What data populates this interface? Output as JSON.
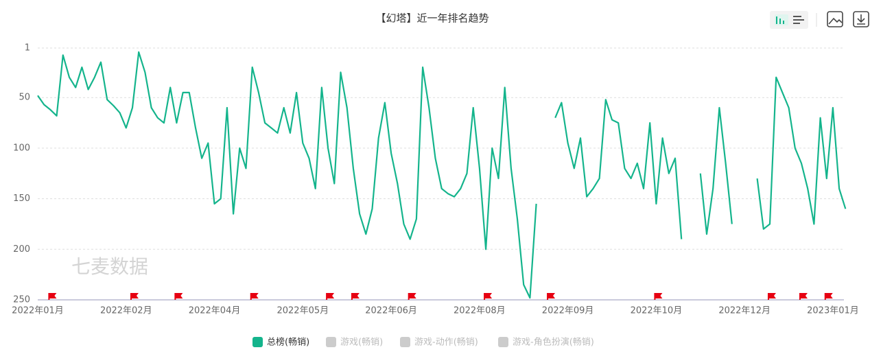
{
  "chart_data": {
    "type": "line",
    "title": "【幻塔】近一年排名趋势",
    "watermark": "七麦数据",
    "categories": [
      "2022年01月",
      null,
      null,
      null,
      null,
      null,
      null,
      null,
      null,
      null,
      null,
      null,
      null,
      null,
      "2022年02月",
      null,
      null,
      null,
      null,
      null,
      null,
      null,
      null,
      null,
      null,
      null,
      null,
      null,
      "2022年04月",
      null,
      null,
      null,
      null,
      null,
      null,
      null,
      null,
      null,
      null,
      null,
      null,
      null,
      "2022年05月",
      null,
      null,
      null,
      null,
      null,
      null,
      null,
      null,
      null,
      null,
      null,
      null,
      null,
      "2022年06月",
      null,
      null,
      null,
      null,
      null,
      null,
      null,
      null,
      null,
      null,
      null,
      null,
      null,
      "2022年08月",
      null,
      null,
      null,
      null,
      null,
      null,
      null,
      null,
      null,
      null,
      null,
      null,
      null,
      "2022年09月",
      null,
      null,
      null,
      null,
      null,
      null,
      null,
      null,
      null,
      null,
      null,
      null,
      null,
      "2022年10月",
      null,
      null,
      null,
      null,
      null,
      null,
      null,
      null,
      null,
      null,
      null,
      null,
      null,
      "2022年12月",
      null,
      null,
      null,
      null,
      null,
      null,
      null,
      null,
      null,
      null,
      null,
      null,
      null,
      "2023年01月",
      null,
      null
    ],
    "series": [
      {
        "name": "总榜(畅销)",
        "color": "#14b48c",
        "values": [
          48,
          57,
          62,
          68,
          8,
          30,
          40,
          20,
          42,
          30,
          15,
          52,
          58,
          65,
          80,
          60,
          5,
          25,
          60,
          70,
          75,
          40,
          75,
          45,
          45,
          80,
          110,
          95,
          155,
          150,
          60,
          165,
          100,
          120,
          20,
          45,
          75,
          80,
          85,
          60,
          85,
          45,
          95,
          110,
          140,
          40,
          100,
          135,
          25,
          60,
          120,
          165,
          185,
          160,
          90,
          55,
          105,
          135,
          175,
          190,
          170,
          20,
          60,
          110,
          140,
          145,
          148,
          140,
          125,
          60,
          120,
          200,
          100,
          130,
          40,
          120,
          170,
          235,
          248,
          155,
          null,
          null,
          70,
          55,
          95,
          120,
          90,
          148,
          140,
          130,
          52,
          72,
          75,
          120,
          130,
          115,
          140,
          75,
          155,
          90,
          125,
          110,
          190,
          null,
          null,
          125,
          185,
          140,
          60,
          115,
          175,
          null,
          null,
          null,
          130,
          180,
          175,
          30,
          45,
          60,
          100,
          115,
          140,
          175,
          70,
          130,
          60,
          140,
          160
        ]
      }
    ],
    "hidden_series": [
      {
        "name": "游戏(畅销)",
        "color": "#cccccc"
      },
      {
        "name": "游戏-动作(畅销)",
        "color": "#cccccc"
      },
      {
        "name": "游戏-角色扮演(畅销)",
        "color": "#cccccc"
      }
    ],
    "flags": [
      2,
      15,
      22,
      34,
      46,
      50,
      59,
      71,
      81,
      98,
      116,
      121,
      125
    ],
    "flag_color": "#e60012",
    "ylim": [
      1,
      250
    ],
    "y_inverted": true,
    "yticks": [
      1,
      50,
      100,
      150,
      200,
      250
    ],
    "grid": true
  }
}
